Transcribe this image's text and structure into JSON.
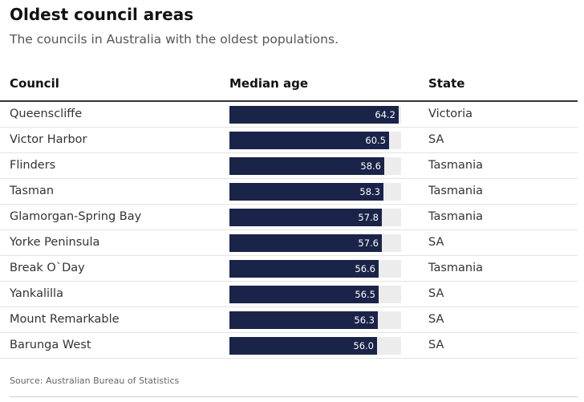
{
  "title": "Oldest council areas",
  "subtitle": "The councils in Australia with the oldest populations.",
  "headers": {
    "council": "Council",
    "median_age": "Median age",
    "state": "State"
  },
  "source": "Source: Australian Bureau of Statistics",
  "colors": {
    "bar": "#1a2448",
    "track": "#ececec"
  },
  "chart_data": {
    "type": "bar",
    "orientation": "horizontal",
    "title": "Oldest council areas",
    "xlabel": "Median age",
    "ylabel": "Council",
    "xlim": [
      0,
      65
    ],
    "categories": [
      "Queenscliffe",
      "Victor Harbor",
      "Flinders",
      "Tasman",
      "Glamorgan-Spring Bay",
      "Yorke Peninsula",
      "Break O`Day",
      "Yankalilla",
      "Mount Remarkable",
      "Barunga West"
    ],
    "values": [
      64.2,
      60.5,
      58.6,
      58.3,
      57.8,
      57.6,
      56.6,
      56.5,
      56.3,
      56.0
    ],
    "labels": [
      "64.2",
      "60.5",
      "58.6",
      "58.3",
      "57.8",
      "57.6",
      "56.6",
      "56.5",
      "56.3",
      "56.0"
    ],
    "states": [
      "Victoria",
      "SA",
      "Tasmania",
      "Tasmania",
      "Tasmania",
      "SA",
      "Tasmania",
      "SA",
      "SA",
      "SA"
    ]
  }
}
